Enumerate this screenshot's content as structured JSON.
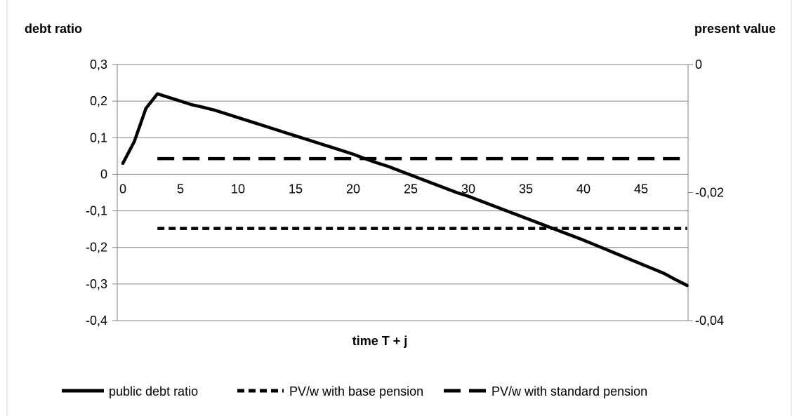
{
  "chart_data": {
    "type": "line",
    "title": "",
    "y_left_title": "debt ratio",
    "y_right_title": "present value",
    "xlabel": "time T + j",
    "x_ticks": [
      0,
      5,
      10,
      15,
      20,
      25,
      30,
      35,
      40,
      45
    ],
    "x_range": [
      0,
      49
    ],
    "y_left": {
      "ticks": [
        "0,3",
        "0,2",
        "0,1",
        "0",
        "-0,1",
        "-0,2",
        "-0,3",
        "-0,4"
      ],
      "ylim": [
        -0.4,
        0.3
      ]
    },
    "y_right": {
      "ticks": [
        "0",
        "-0,02",
        "-0,04"
      ],
      "ylim": [
        -0.04,
        0
      ]
    },
    "grid": "horizontal",
    "legend_position": "bottom",
    "series": [
      {
        "name": "public debt ratio",
        "axis": "left",
        "style": "solid",
        "x": [
          0,
          1,
          2,
          3,
          4,
          5,
          6,
          7,
          8,
          9,
          10,
          11,
          12,
          13,
          14,
          15,
          16,
          17,
          18,
          19,
          20,
          21,
          22,
          23,
          24,
          25,
          26,
          27,
          28,
          29,
          30,
          31,
          32,
          33,
          34,
          35,
          36,
          37,
          38,
          39,
          40,
          41,
          42,
          43,
          44,
          45,
          46,
          47,
          48,
          49
        ],
        "values": [
          0.03,
          0.09,
          0.18,
          0.22,
          0.21,
          0.2,
          0.19,
          0.183,
          0.175,
          0.165,
          0.155,
          0.145,
          0.135,
          0.125,
          0.115,
          0.105,
          0.095,
          0.085,
          0.075,
          0.065,
          0.055,
          0.043,
          0.032,
          0.022,
          0.01,
          -0.002,
          -0.014,
          -0.026,
          -0.038,
          -0.05,
          -0.06,
          -0.072,
          -0.084,
          -0.096,
          -0.108,
          -0.12,
          -0.132,
          -0.144,
          -0.156,
          -0.168,
          -0.18,
          -0.193,
          -0.206,
          -0.219,
          -0.232,
          -0.245,
          -0.258,
          -0.271,
          -0.288,
          -0.304
        ]
      },
      {
        "name": "PV/w with base pension",
        "axis": "right",
        "style": "short-dash",
        "x_range": [
          3,
          49
        ],
        "value": -0.0256
      },
      {
        "name": "PV/w with standard pension",
        "axis": "right",
        "style": "long-dash",
        "x_range": [
          3,
          49
        ],
        "value": -0.0147
      }
    ]
  }
}
